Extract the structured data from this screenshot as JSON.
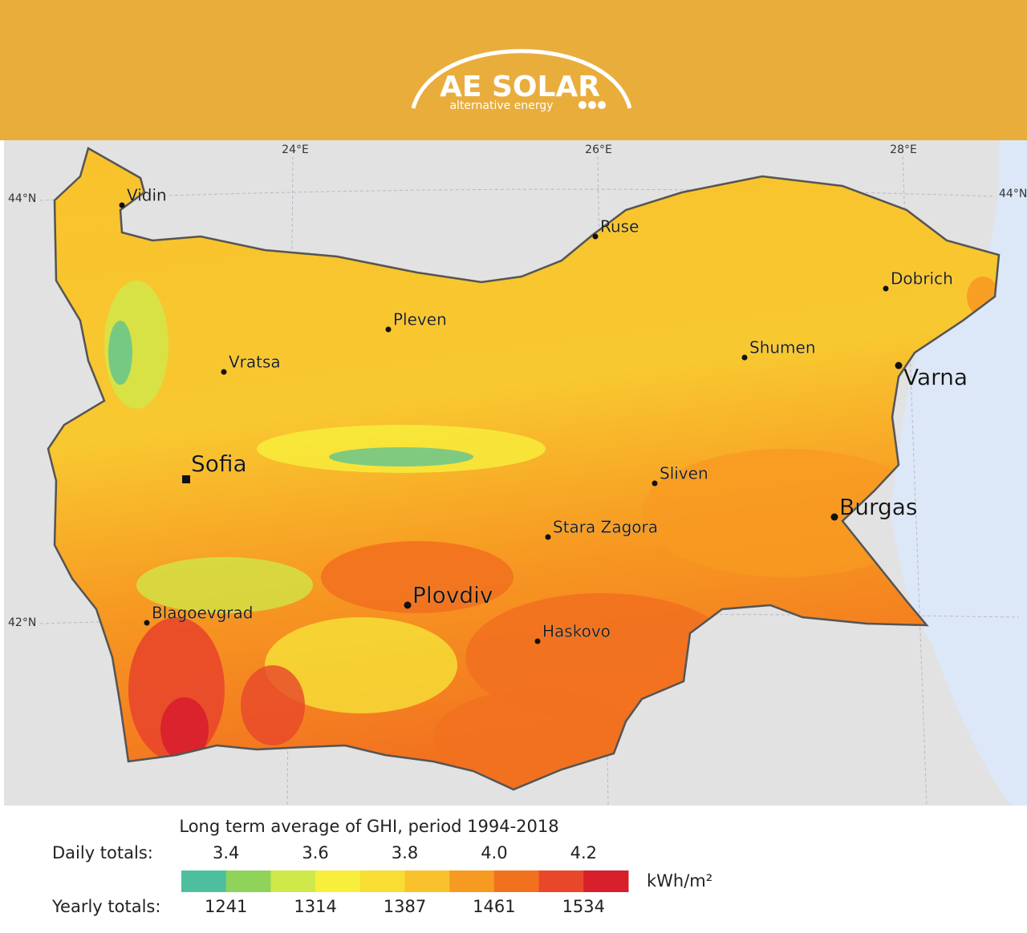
{
  "header": {
    "brand": "AE SOLAR",
    "tagline": "alternative energy"
  },
  "map": {
    "graticule": {
      "meridians": [
        "24°E",
        "26°E",
        "28°E"
      ],
      "parallels": [
        "44°N",
        "42°N"
      ],
      "parallel_right": "44°N"
    },
    "cities": [
      "Vidin",
      "Ruse",
      "Dobrich",
      "Pleven",
      "Vratsa",
      "Shumen",
      "Varna",
      "Sofia",
      "Sliven",
      "Burgas",
      "Stara Zagora",
      "Plovdiv",
      "Blagoevgrad",
      "Haskovo"
    ]
  },
  "legend": {
    "title": "Long term average of GHI, period 1994-2018",
    "daily_label": "Daily totals:",
    "daily_ticks": [
      "3.4",
      "3.6",
      "3.8",
      "4.0",
      "4.2"
    ],
    "yearly_label": "Yearly totals:",
    "yearly_ticks": [
      "1241",
      "1314",
      "1387",
      "1461",
      "1534"
    ],
    "unit": "kWh/m²",
    "colors": [
      "#4dbf9e",
      "#8fd35a",
      "#cfe94a",
      "#f7ef3c",
      "#f8dd32",
      "#f9c22c",
      "#f79a22",
      "#f2711f",
      "#e9472a",
      "#d81f2c"
    ]
  }
}
